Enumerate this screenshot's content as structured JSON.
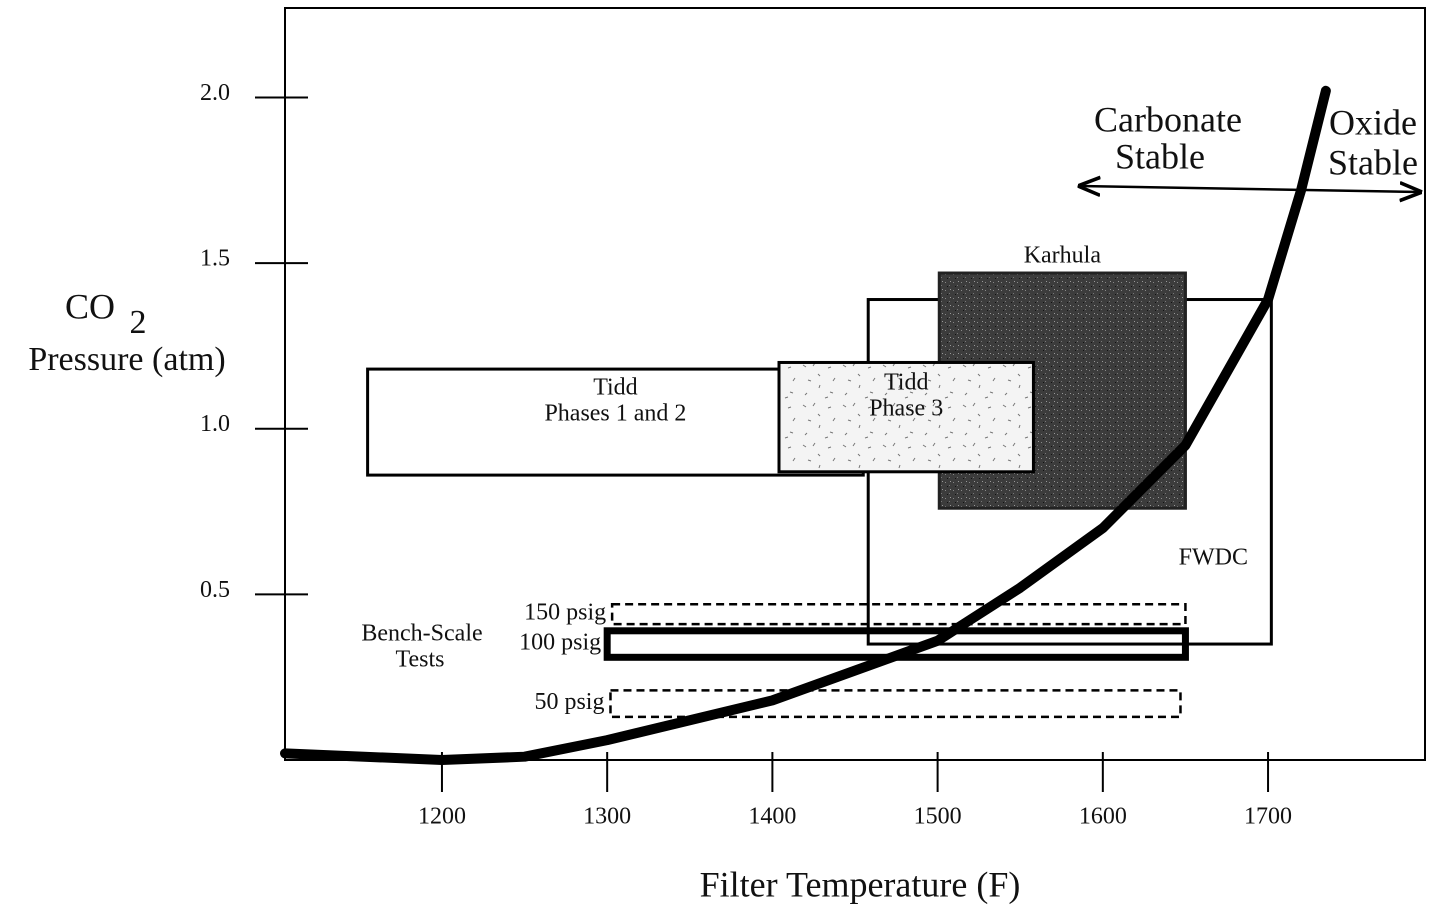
{
  "chart_data": {
    "type": "region",
    "x_label": "Filter Temperature (F)",
    "y_label": [
      "CO",
      "2",
      "Pressure (atm)"
    ],
    "xlim": [
      1105,
      1795
    ],
    "ylim": [
      0,
      2.27
    ],
    "xticks": [
      1200,
      1300,
      1400,
      1500,
      1600,
      1700
    ],
    "yticks": [
      0.5,
      {
        "value": 1,
        "label": "1.0"
      },
      1.5,
      {
        "value": 2,
        "label": "2.0"
      }
    ],
    "annotations": [
      [
        "Carbonate",
        "Stable"
      ],
      [
        "Oxide",
        "Stable"
      ],
      [
        "Bench-Scale",
        "Tests"
      ]
    ],
    "regions": [
      {
        "label": [
          "FWDC"
        ],
        "x": [
          1458,
          1702
        ],
        "y": [
          0.35,
          1.39
        ],
        "style": "outline",
        "label_pos": "inside-right"
      },
      {
        "label": [
          "Karhula"
        ],
        "x": [
          1501,
          1650
        ],
        "y": [
          0.76,
          1.47
        ],
        "style": "dark",
        "label_pos": "above"
      },
      {
        "label": [
          "Tidd",
          "Phases 1 and 2"
        ],
        "x": [
          1155,
          1455
        ],
        "y": [
          0.86,
          1.18
        ],
        "style": "outline",
        "label_pos": "center"
      },
      {
        "label": [
          "Tidd",
          "Phase 3"
        ],
        "x": [
          1404,
          1558
        ],
        "y": [
          0.87,
          1.2
        ],
        "style": "dotted",
        "label_pos": "center"
      },
      {
        "label": [
          "150 psig"
        ],
        "x": [
          1303,
          1650
        ],
        "y": [
          0.41,
          0.47
        ],
        "style": "dashed",
        "label_pos": "left"
      },
      {
        "label": [
          "100 psig"
        ],
        "x": [
          1300,
          1650
        ],
        "y": [
          0.31,
          0.39
        ],
        "style": "thick",
        "label_pos": "left"
      },
      {
        "label": [
          "50 psig"
        ],
        "x": [
          1302,
          1647
        ],
        "y": [
          0.13,
          0.21
        ],
        "style": "dashed",
        "label_pos": "left"
      }
    ],
    "curve": {
      "x": [
        1105,
        1200,
        1250,
        1300,
        1400,
        1500,
        1550,
        1600,
        1650,
        1700,
        1720,
        1735
      ],
      "y": [
        0.02,
        0.0,
        0.01,
        0.06,
        0.18,
        0.36,
        0.52,
        0.7,
        0.95,
        1.39,
        1.72,
        2.02
      ],
      "color": "#000000"
    }
  }
}
